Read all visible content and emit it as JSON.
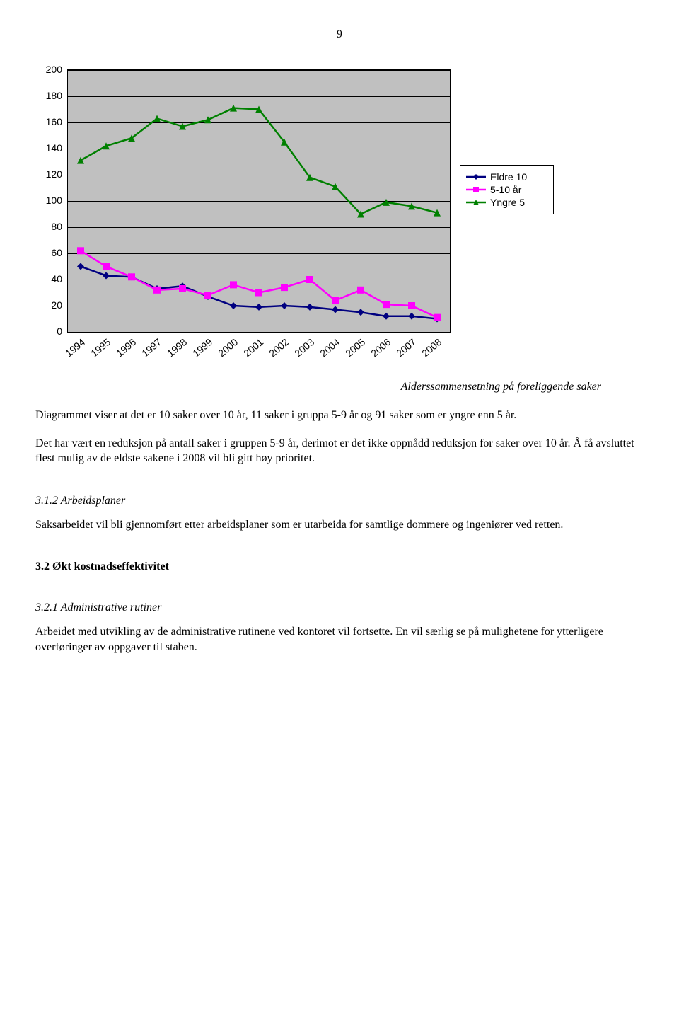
{
  "page_number": "9",
  "chart": {
    "type": "line",
    "ylim": [
      0,
      200
    ],
    "ytick_step": 20,
    "yticks": [
      0,
      20,
      40,
      60,
      80,
      100,
      120,
      140,
      160,
      180,
      200
    ],
    "categories": [
      "1994",
      "1995",
      "1996",
      "1997",
      "1998",
      "1999",
      "2000",
      "2001",
      "2002",
      "2003",
      "2004",
      "2005",
      "2006",
      "2007",
      "2008"
    ],
    "plot_bg": "#c0c0c0",
    "grid_color": "#000000",
    "line_width": 2.5,
    "marker_size": 5,
    "series": [
      {
        "name": "Eldre 10",
        "color": "#000080",
        "marker": "diamond",
        "values": [
          50,
          43,
          42,
          33,
          35,
          27,
          20,
          19,
          20,
          19,
          17,
          15,
          12,
          12,
          10
        ]
      },
      {
        "name": "5-10 år",
        "color": "#ff00ff",
        "marker": "square",
        "values": [
          62,
          50,
          42,
          32,
          33,
          28,
          36,
          30,
          34,
          40,
          24,
          32,
          21,
          20,
          11
        ]
      },
      {
        "name": "Yngre 5",
        "color": "#008000",
        "marker": "triangle",
        "values": [
          131,
          142,
          148,
          163,
          157,
          162,
          171,
          170,
          145,
          118,
          111,
          90,
          99,
          96,
          91
        ]
      }
    ]
  },
  "caption": "Alderssammensetning på foreliggende saker",
  "para1": "Diagrammet viser at det er 10 saker over 10 år, 11 saker i gruppa 5-9 år og 91 saker som er yngre enn 5 år.",
  "para2": "Det har vært en reduksjon på antall saker i gruppen 5-9 år, derimot er det ikke oppnådd reduksjon for saker over 10 år. Å få avsluttet flest mulig av de eldste sakene i 2008 vil bli gitt høy prioritet.",
  "h312": "3.1.2 Arbeidsplaner",
  "para3": "Saksarbeidet vil bli gjennomført etter arbeidsplaner som er utarbeida for samtlige dommere og ingeniører ved retten.",
  "h32": "3.2 Økt kostnadseffektivitet",
  "h321": "3.2.1 Administrative rutiner",
  "para4": "Arbeidet med utvikling av de administrative rutinene ved kontoret vil fortsette. En vil særlig se på mulighetene for ytterligere overføringer av oppgaver til staben."
}
